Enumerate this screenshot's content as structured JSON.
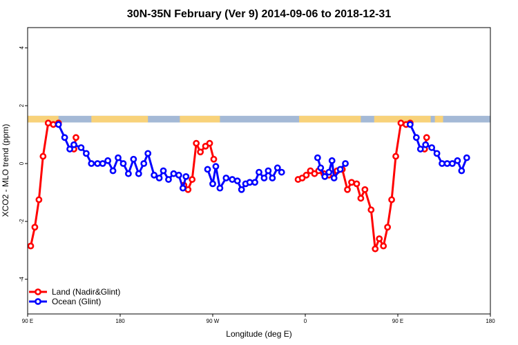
{
  "chart_data": {
    "type": "line",
    "title": "30N-35N February (Ver 9)   2014-09-06 to 2018-12-31",
    "xlabel": "Longitude (deg E)",
    "ylabel": "XCO2 - MLO trend (ppm)",
    "xlim": [
      90,
      540
    ],
    "ylim": [
      -5.2,
      4.7
    ],
    "x_ticks": [
      {
        "value": 90,
        "label": "90 E"
      },
      {
        "value": 180,
        "label": "180"
      },
      {
        "value": 270,
        "label": "90 W"
      },
      {
        "value": 360,
        "label": "0"
      },
      {
        "value": 450,
        "label": "90 E"
      },
      {
        "value": 540,
        "label": "180"
      }
    ],
    "y_ticks": [
      {
        "value": -4,
        "label": "-4"
      },
      {
        "value": -2,
        "label": "-2"
      },
      {
        "value": 0,
        "label": "0"
      },
      {
        "value": 2,
        "label": "2"
      },
      {
        "value": 4,
        "label": "4"
      }
    ],
    "land_mask": {
      "y_range": [
        1.42,
        1.65
      ],
      "land_color": "#f8d27a",
      "ocean_color": "#a4b9d6",
      "land_segments": [
        [
          90,
          120
        ],
        [
          152,
          207
        ],
        [
          238,
          277
        ],
        [
          354,
          414
        ],
        [
          427,
          482
        ],
        [
          486,
          494
        ]
      ]
    },
    "legend": {
      "position": "bottom-left",
      "entries": [
        {
          "name": "Land (Nadir&Glint)",
          "color": "#ff0000"
        },
        {
          "name": "Ocean (Glint)",
          "color": "#0000ff"
        }
      ]
    },
    "series": [
      {
        "name": "Land (Nadir&Glint)",
        "color": "#ff0000",
        "segments": [
          [
            [
              93,
              -2.85
            ],
            [
              97,
              -2.2
            ],
            [
              101,
              -1.25
            ],
            [
              105,
              0.25
            ],
            [
              110,
              1.4
            ],
            [
              115,
              1.35
            ],
            [
              120,
              1.4
            ]
          ],
          [
            [
              135,
              0.5
            ],
            [
              137,
              0.9
            ]
          ],
          [
            [
              242,
              -0.75
            ],
            [
              246,
              -0.9
            ],
            [
              250,
              -0.55
            ],
            [
              254,
              0.7
            ],
            [
              258,
              0.4
            ],
            [
              263,
              0.6
            ],
            [
              267,
              0.7
            ],
            [
              271,
              0.15
            ]
          ],
          [
            [
              353,
              -0.55
            ],
            [
              357,
              -0.5
            ],
            [
              361,
              -0.4
            ],
            [
              365,
              -0.25
            ],
            [
              369,
              -0.35
            ],
            [
              373,
              -0.25
            ],
            [
              378,
              -0.35
            ],
            [
              383,
              -0.4
            ],
            [
              387,
              -0.35
            ],
            [
              391,
              -0.25
            ],
            [
              396,
              -0.2
            ],
            [
              401,
              -0.9
            ],
            [
              405,
              -0.65
            ],
            [
              410,
              -0.7
            ],
            [
              414,
              -1.2
            ],
            [
              418,
              -0.9
            ],
            [
              424,
              -1.6
            ],
            [
              428,
              -2.95
            ],
            [
              432,
              -2.6
            ],
            [
              436,
              -2.85
            ],
            [
              440,
              -2.2
            ],
            [
              444,
              -1.25
            ],
            [
              448,
              0.25
            ],
            [
              453,
              1.4
            ],
            [
              458,
              1.35
            ],
            [
              462,
              1.4
            ]
          ],
          [
            [
              476,
              0.5
            ],
            [
              478,
              0.9
            ]
          ]
        ]
      },
      {
        "name": "Ocean (Glint)",
        "color": "#0000ff",
        "segments": [
          [
            [
              120,
              1.35
            ],
            [
              126,
              0.9
            ],
            [
              131,
              0.5
            ],
            [
              135,
              0.65
            ],
            [
              142,
              0.55
            ],
            [
              147,
              0.35
            ],
            [
              152,
              0.0
            ],
            [
              158,
              0.0
            ],
            [
              163,
              0.0
            ],
            [
              168,
              0.1
            ],
            [
              173,
              -0.25
            ],
            [
              178,
              0.2
            ],
            [
              183,
              0.0
            ],
            [
              188,
              -0.35
            ],
            [
              193,
              0.15
            ],
            [
              198,
              -0.35
            ],
            [
              203,
              0.0
            ],
            [
              207,
              0.35
            ],
            [
              213,
              -0.4
            ],
            [
              218,
              -0.5
            ],
            [
              222,
              -0.25
            ],
            [
              227,
              -0.55
            ],
            [
              232,
              -0.35
            ],
            [
              237,
              -0.4
            ],
            [
              241,
              -0.85
            ],
            [
              244,
              -0.45
            ]
          ],
          [
            [
              265,
              -0.2
            ],
            [
              270,
              -0.7
            ],
            [
              273,
              -0.1
            ],
            [
              277,
              -0.85
            ],
            [
              283,
              -0.5
            ],
            [
              289,
              -0.55
            ],
            [
              294,
              -0.6
            ],
            [
              298,
              -0.9
            ],
            [
              302,
              -0.7
            ],
            [
              306,
              -0.65
            ],
            [
              311,
              -0.65
            ],
            [
              315,
              -0.3
            ],
            [
              320,
              -0.5
            ],
            [
              324,
              -0.25
            ],
            [
              328,
              -0.5
            ],
            [
              333,
              -0.15
            ],
            [
              337,
              -0.3
            ]
          ],
          [
            [
              372,
              0.2
            ],
            [
              375,
              -0.15
            ],
            [
              379,
              -0.45
            ],
            [
              383,
              -0.3
            ],
            [
              386,
              0.1
            ],
            [
              388,
              -0.5
            ],
            [
              394,
              -0.2
            ],
            [
              399,
              0.0
            ]
          ],
          [
            [
              462,
              1.35
            ],
            [
              468,
              0.9
            ],
            [
              472,
              0.5
            ],
            [
              477,
              0.65
            ],
            [
              483,
              0.55
            ],
            [
              488,
              0.35
            ],
            [
              493,
              0.0
            ],
            [
              498,
              0.0
            ],
            [
              503,
              0.0
            ],
            [
              508,
              0.1
            ],
            [
              512,
              -0.25
            ],
            [
              517,
              0.2
            ]
          ]
        ]
      }
    ]
  }
}
